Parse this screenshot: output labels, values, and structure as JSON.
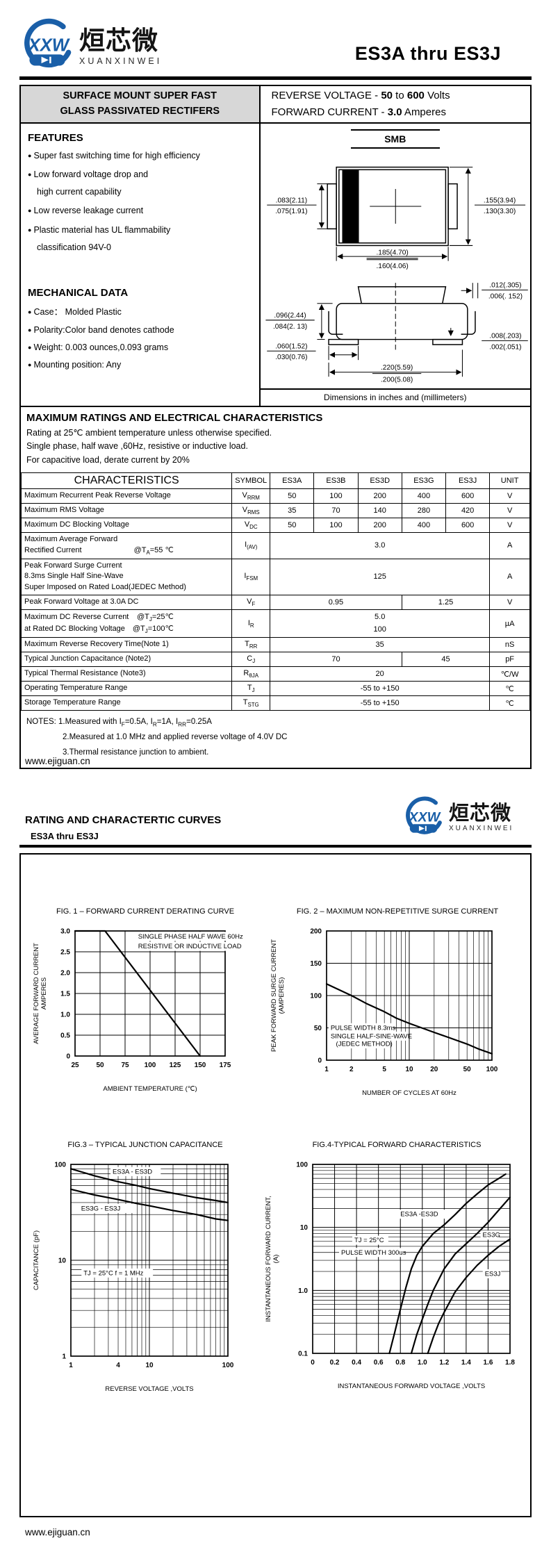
{
  "logo": {
    "zh": "烜芯微",
    "en": "XUANXINWEI",
    "mark": "XXW"
  },
  "title": {
    "part_range": "ES3A thru ES3J"
  },
  "footer": {
    "url": "www.ejiguan.cn"
  },
  "classification": {
    "line1": "SURFACE MOUNT SUPER FAST",
    "line2": "GLASS PASSIVATED RECTIFERS"
  },
  "summary": {
    "reverse_voltage": [
      {
        "t": "REVERSE VOLTAGE   -  "
      },
      {
        "t": "50",
        "b": true
      },
      {
        "t": "  to "
      },
      {
        "t": "600",
        "b": true
      },
      {
        "t": " Volts"
      }
    ],
    "forward_current": [
      {
        "t": "FORWARD CURRENT -  "
      },
      {
        "t": "3.0",
        "b": true
      },
      {
        "t": " Amperes"
      }
    ]
  },
  "features": {
    "title": "FEATURES",
    "items": [
      {
        "lines": [
          "Super fast switching time for high efficiency"
        ]
      },
      {
        "lines": [
          "Low forward voltage drop and",
          "high current capability"
        ]
      },
      {
        "lines": [
          "Low reverse leakage current"
        ]
      },
      {
        "lines": [
          "Plastic material has UL flammability",
          "classification 94V-0"
        ]
      }
    ]
  },
  "mechanical": {
    "title": "MECHANICAL DATA",
    "items": [
      "Case：  Molded Plastic",
      "Polarity:Color band denotes cathode",
      "Weight: 0.003 ounces,0.093 grams",
      "Mounting position: Any"
    ]
  },
  "package": {
    "name": "SMB",
    "note": "Dimensions in inches and (millimeters)",
    "top_view": {
      "tab_width": {
        "a": ".083(2.11)",
        "b": ".075(1.91)"
      },
      "body_width": {
        "a": ".155(3.94)",
        "b": ".130(3.30)"
      },
      "body_length": {
        "a": ".185(4.70)",
        "b": ".160(4.06)"
      }
    },
    "side_view": {
      "lead_thickness": {
        "a": ".012(.305)",
        "b": ".006(. 152)"
      },
      "height": {
        "a": ".096(2.44)",
        "b": ".084(2. 13)"
      },
      "foot_length": {
        "a": ".060(1.52)",
        "b": ".030(0.76)"
      },
      "overall_length": {
        "a": ".220(5.59)",
        "b": ".200(5.08)"
      },
      "standoff": {
        "a": ".008(.203)",
        "b": ".002(.051)"
      }
    }
  },
  "ratings": {
    "title": "MAXIMUM RATINGS AND ELECTRICAL CHARACTERISTICS",
    "intro": [
      "Rating at 25℃ ambient temperature unless otherwise specified.",
      "Single phase, half wave ,60Hz, resistive or inductive load.",
      "For capacitive load, derate current by 20%"
    ],
    "table": {
      "headers": [
        "CHARACTERISTICS",
        "SYMBOL",
        "ES3A",
        "ES3B",
        "ES3D",
        "ES3G",
        "ES3J",
        "UNIT"
      ],
      "rows": [
        {
          "char": [
            "Maximum Recurrent Peak Reverse Voltage"
          ],
          "sym": "V~RRM~",
          "cells": [
            {
              "t": "50"
            },
            {
              "t": "100"
            },
            {
              "t": "200"
            },
            {
              "t": "400"
            },
            {
              "t": "600"
            }
          ],
          "unit": "V"
        },
        {
          "char": [
            "Maximum RMS Voltage"
          ],
          "sym": "V~RMS~",
          "cells": [
            {
              "t": "35"
            },
            {
              "t": "70"
            },
            {
              "t": "140"
            },
            {
              "t": "280"
            },
            {
              "t": "420"
            }
          ],
          "unit": "V"
        },
        {
          "char": [
            "Maximum DC Blocking Voltage"
          ],
          "sym": "V~DC~",
          "cells": [
            {
              "t": "50"
            },
            {
              "t": "100"
            },
            {
              "t": "200"
            },
            {
              "t": "400"
            },
            {
              "t": "600"
            }
          ],
          "unit": "V"
        },
        {
          "char": [
            "Maximum Average Forward",
            {
              "l": " Rectified Current",
              "r": "@T~A~=55 ℃"
            }
          ],
          "sym": "I~(AV)~",
          "cells": [
            {
              "t": "3.0",
              "span": 5
            }
          ],
          "unit": "A"
        },
        {
          "char": [
            "Peak Forward Surge Current",
            "8.3ms Single Half Sine-Wave",
            "Super Imposed on Rated Load(JEDEC Method)"
          ],
          "sym": "I~FSM~",
          "cells": [
            {
              "t": "125",
              "span": 5
            }
          ],
          "unit": "A"
        },
        {
          "char": [
            "Peak Forward Voltage at 3.0A DC"
          ],
          "sym": "V~F~",
          "cells": [
            {
              "t": "0.95",
              "span": 3
            },
            {
              "t": "1.25",
              "span": 2
            }
          ],
          "unit": "V"
        },
        {
          "char": [
            {
              "l": "Maximum DC Reverse Current",
              "r": "@T~J~=25℃"
            },
            {
              "l": "at Rated DC Blocking Voltage",
              "r": "@T~J~=100℃"
            }
          ],
          "sym": "I~R~",
          "cells": [
            {
              "lines": [
                "5.0",
                "100"
              ],
              "span": 5
            }
          ],
          "unit": "µA"
        },
        {
          "char": [
            "Maximum Reverse Recovery Time(Note 1)"
          ],
          "sym": "T~RR~",
          "cells": [
            {
              "t": "35",
              "span": 5
            }
          ],
          "unit": "nS"
        },
        {
          "char": [
            "Typical Junction  Capacitance (Note2)"
          ],
          "sym": "C~J~",
          "cells": [
            {
              "t": "70",
              "span": 3
            },
            {
              "t": "45",
              "span": 2
            }
          ],
          "unit": "pF"
        },
        {
          "char": [
            "Typical Thermal Resistance (Note3)"
          ],
          "sym": "R~θJA~",
          "cells": [
            {
              "t": "20",
              "span": 5
            }
          ],
          "unit": "℃/W"
        },
        {
          "char": [
            "Operating Temperature Range"
          ],
          "sym": "T~J~",
          "cells": [
            {
              "t": "-55 to +150",
              "span": 5
            }
          ],
          "unit": "℃"
        },
        {
          "char": [
            "Storage Temperature Range"
          ],
          "sym": "T~STG~",
          "cells": [
            {
              "t": "-55 to +150",
              "span": 5
            }
          ],
          "unit": "℃"
        }
      ]
    },
    "notes": [
      "NOTES: 1.Measured with I~F~=0.5A, I~R~=1A, I~RR~=0.25A",
      "2.Measured at 1.0 MHz and applied reverse voltage of 4.0V DC",
      "3.Thermal resistance junction to ambient."
    ]
  },
  "page2": {
    "title": "RATING AND CHARACTERTIC CURVES",
    "subtitle": "ES3A  thru ES3J"
  },
  "chart_data": [
    {
      "type": "line",
      "fig": "FIG. 1 – FORWARD CURRENT DERATING CURVE",
      "xlabel": "AMBIENT TEMPERATURE  (℃)",
      "ylabel": "AVERAGE FORWARD CURRENT\nAMPERES",
      "xscale": "linear",
      "xlim": [
        25,
        175
      ],
      "xticks": [
        {
          "v": 25,
          "label": "25"
        },
        {
          "v": 50,
          "label": "50"
        },
        {
          "v": 75,
          "label": "75"
        },
        {
          "v": 100,
          "label": "100"
        },
        {
          "v": 125,
          "label": "125"
        },
        {
          "v": 150,
          "label": "150"
        },
        {
          "v": 175,
          "label": "175"
        }
      ],
      "yscale": "linear",
      "ylim": [
        0,
        3
      ],
      "yticks": [
        {
          "v": 0,
          "label": "0"
        },
        {
          "v": 0.5,
          "label": "0.5"
        },
        {
          "v": 1,
          "label": "1.0"
        },
        {
          "v": 1.5,
          "label": "1.5"
        },
        {
          "v": 2,
          "label": "2.0"
        },
        {
          "v": 2.5,
          "label": "2.5"
        },
        {
          "v": 3,
          "label": "3.0"
        }
      ],
      "series": [
        {
          "name": "derating",
          "points": [
            [
              25,
              3
            ],
            [
              55,
              3
            ],
            [
              150,
              0
            ]
          ]
        }
      ],
      "annotations": [
        {
          "text": "SINGLE PHASE HALF WAVE 60Hz",
          "x": 88,
          "y": 2.82
        },
        {
          "text": "RESISTIVE OR INDUCTIVE LOAD",
          "x": 88,
          "y": 2.58
        }
      ]
    },
    {
      "type": "line",
      "fig": "FIG. 2 – MAXIMUM NON-REPETITIVE SURGE CURRENT",
      "xlabel": "NUMBER OF CYCLES AT 60Hz",
      "ylabel": "PEAK FORWARD SURGE CURRENT\n(AMPERES)",
      "xscale": "log",
      "xlim": [
        1,
        100
      ],
      "xticks": [
        {
          "v": 1,
          "label": "1"
        },
        {
          "v": 2,
          "label": "2"
        },
        {
          "v": 5,
          "label": "5"
        },
        {
          "v": 10,
          "label": "10"
        },
        {
          "v": 20,
          "label": "20"
        },
        {
          "v": 50,
          "label": "50"
        },
        {
          "v": 100,
          "label": "100"
        }
      ],
      "yscale": "linear",
      "ylim": [
        0,
        200
      ],
      "yticks": [
        {
          "v": 0,
          "label": "0"
        },
        {
          "v": 50,
          "label": "50"
        },
        {
          "v": 100,
          "label": "100"
        },
        {
          "v": 150,
          "label": "150"
        },
        {
          "v": 200,
          "label": "200"
        }
      ],
      "series": [
        {
          "name": "surge",
          "points": [
            [
              1,
              118
            ],
            [
              2,
              100
            ],
            [
              3,
              88
            ],
            [
              5,
              75
            ],
            [
              7,
              65
            ],
            [
              10,
              57
            ],
            [
              20,
              43
            ],
            [
              30,
              35
            ],
            [
              50,
              25
            ],
            [
              70,
              17
            ],
            [
              100,
              10
            ]
          ]
        }
      ],
      "annotations": [
        {
          "text": "PULSE WIDTH 8.3ms",
          "x": 1.12,
          "y": 47
        },
        {
          "text": "SINGLE HALF-SINE-WAVE",
          "x": 1.12,
          "y": 34
        },
        {
          "text": "(JEDEC METHOD)",
          "x": 1.3,
          "y": 22
        }
      ]
    },
    {
      "type": "line",
      "fig": "FIG.3 – TYPICAL JUNCTION CAPACITANCE",
      "xlabel": "REVERSE VOLTAGE ,VOLTS",
      "ylabel": "CAPACITANCE (pF)",
      "xscale": "log",
      "xlim": [
        1,
        100
      ],
      "xticks": [
        {
          "v": 1,
          "label": "1"
        },
        {
          "v": 4,
          "label": "4"
        },
        {
          "v": 10,
          "label": "10"
        },
        {
          "v": 100,
          "label": "100"
        }
      ],
      "yscale": "log",
      "ylim": [
        1,
        100
      ],
      "yticks": [
        {
          "v": 1,
          "label": "1"
        },
        {
          "v": 10,
          "label": "10"
        },
        {
          "v": 100,
          "label": "100"
        }
      ],
      "series": [
        {
          "name": "ES3A - ES3D",
          "points": [
            [
              1,
              90
            ],
            [
              2,
              76
            ],
            [
              4,
              66
            ],
            [
              7,
              60
            ],
            [
              10,
              56
            ],
            [
              20,
              50
            ],
            [
              40,
              45
            ],
            [
              70,
              42
            ],
            [
              100,
              40
            ]
          ]
        },
        {
          "name": "ES3G - ES3J",
          "points": [
            [
              1,
              55
            ],
            [
              2,
              48
            ],
            [
              4,
              43
            ],
            [
              7,
              39
            ],
            [
              10,
              37
            ],
            [
              20,
              33
            ],
            [
              40,
              30
            ],
            [
              70,
              27
            ],
            [
              100,
              26
            ]
          ]
        }
      ],
      "annotations": [
        {
          "text": "ES3A   - ES3D",
          "x": 3.4,
          "y": 80
        },
        {
          "text": "ES3G    - ES3J",
          "x": 1.35,
          "y": 33
        },
        {
          "text": "TJ = 25°C f = 1 MHz",
          "x": 1.45,
          "y": 7
        }
      ]
    },
    {
      "type": "line",
      "fig": "FIG.4-TYPICAL FORWARD CHARACTERISTICS",
      "xlabel": "INSTANTANEOUS FORWARD VOLTAGE ,VOLTS",
      "ylabel": "INSTANTANEOUS FORWARD CURRENT,\n(A)",
      "xscale": "linear",
      "xlim": [
        0,
        1.8
      ],
      "xticks": [
        {
          "v": 0,
          "label": "0"
        },
        {
          "v": 0.2,
          "label": "0.2"
        },
        {
          "v": 0.4,
          "label": "0.4"
        },
        {
          "v": 0.6,
          "label": "0.6"
        },
        {
          "v": 0.8,
          "label": "0.8"
        },
        {
          "v": 1.0,
          "label": "1.0"
        },
        {
          "v": 1.2,
          "label": "1.2"
        },
        {
          "v": 1.4,
          "label": "1.4"
        },
        {
          "v": 1.6,
          "label": "1.6"
        },
        {
          "v": 1.8,
          "label": "1.8"
        }
      ],
      "yscale": "log",
      "ylim": [
        0.1,
        100
      ],
      "yticks": [
        {
          "v": 0.1,
          "label": "0.1"
        },
        {
          "v": 1,
          "label": "1.0"
        },
        {
          "v": 10,
          "label": "10"
        },
        {
          "v": 100,
          "label": "100"
        }
      ],
      "series": [
        {
          "name": "ES3A -ES3D",
          "points": [
            [
              0.7,
              0.1
            ],
            [
              0.75,
              0.22
            ],
            [
              0.8,
              0.5
            ],
            [
              0.85,
              1.1
            ],
            [
              0.9,
              2.2
            ],
            [
              0.95,
              3.6
            ],
            [
              1.0,
              5.0
            ],
            [
              1.1,
              8.0
            ],
            [
              1.2,
              11
            ],
            [
              1.3,
              16
            ],
            [
              1.4,
              24
            ],
            [
              1.5,
              34
            ],
            [
              1.6,
              47
            ],
            [
              1.7,
              60
            ],
            [
              1.76,
              70
            ]
          ]
        },
        {
          "name": "ES3G",
          "points": [
            [
              0.9,
              0.1
            ],
            [
              0.95,
              0.2
            ],
            [
              1.0,
              0.35
            ],
            [
              1.05,
              0.6
            ],
            [
              1.1,
              1.0
            ],
            [
              1.2,
              2.2
            ],
            [
              1.3,
              3.8
            ],
            [
              1.4,
              5.5
            ],
            [
              1.5,
              8.0
            ],
            [
              1.6,
              12
            ],
            [
              1.7,
              19
            ],
            [
              1.8,
              30
            ]
          ]
        },
        {
          "name": "ES3J",
          "points": [
            [
              1.05,
              0.1
            ],
            [
              1.1,
              0.18
            ],
            [
              1.15,
              0.3
            ],
            [
              1.2,
              0.45
            ],
            [
              1.3,
              0.95
            ],
            [
              1.4,
              1.6
            ],
            [
              1.5,
              2.5
            ],
            [
              1.6,
              3.6
            ],
            [
              1.7,
              5.0
            ],
            [
              1.8,
              6.5
            ]
          ]
        }
      ],
      "annotations": [
        {
          "text": "ES3A   -ES3D",
          "x": 0.8,
          "y": 15
        },
        {
          "text": "TJ = 25°C",
          "x": 0.38,
          "y": 5.8
        },
        {
          "text": "PULSE WIDTH 300us",
          "x": 0.26,
          "y": 3.7
        },
        {
          "text": "ES3G",
          "x": 1.55,
          "y": 7
        },
        {
          "text": "ES3J",
          "x": 1.57,
          "y": 1.7
        }
      ]
    }
  ]
}
